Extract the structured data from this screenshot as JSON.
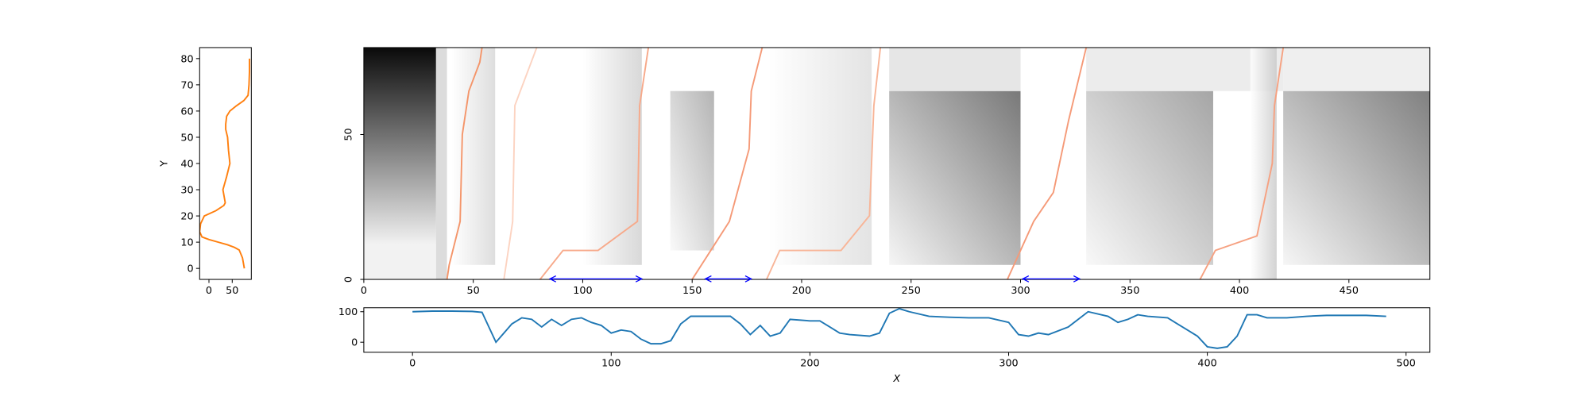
{
  "chart_data": [
    {
      "type": "line",
      "ylabel": "Y",
      "xlim": [
        -20,
        91
      ],
      "ylim": [
        -4.2,
        84.2
      ],
      "xticks": [
        0,
        50
      ],
      "yticks": [
        0,
        10,
        20,
        30,
        40,
        50,
        60,
        70,
        80
      ],
      "series": [
        {
          "color": "#ff7f0e",
          "x": [
            76,
            74,
            72,
            65,
            55,
            40,
            20,
            0,
            -15,
            -20,
            -18,
            -10,
            15,
            32,
            35,
            32,
            30,
            38,
            45,
            42,
            40,
            36,
            36,
            38,
            45,
            59,
            75,
            84,
            86,
            87,
            87
          ],
          "values": [
            0,
            2,
            4,
            7,
            8,
            9,
            10,
            11,
            12,
            14,
            17,
            20,
            22,
            24,
            25,
            28,
            30,
            35,
            40,
            45,
            50,
            53,
            55,
            58,
            60,
            62,
            64,
            66,
            70,
            75,
            80
          ]
        }
      ]
    },
    {
      "type": "heatmap",
      "xlim": [
        0,
        487
      ],
      "ylim": [
        0,
        80
      ],
      "xticks": [
        0,
        50,
        100,
        150,
        200,
        250,
        300,
        350,
        400,
        450
      ],
      "yticks": [
        0,
        50
      ],
      "series": [
        {
          "color": "#f4956a",
          "x": [
            38,
            39,
            44,
            45,
            48,
            53,
            54
          ],
          "values": [
            0,
            5,
            20,
            50,
            65,
            75,
            80
          ]
        },
        {
          "color": "#fcd3c1",
          "x": [
            64,
            68,
            69,
            79
          ],
          "values": [
            0,
            20,
            60,
            80
          ]
        },
        {
          "color": "#f7a98a",
          "x": [
            80.5,
            91,
            107,
            125,
            126,
            130
          ],
          "values": [
            0,
            10,
            10,
            20,
            60,
            80
          ]
        },
        {
          "color": "#f59a78",
          "x": [
            150,
            167,
            176,
            177,
            182
          ],
          "values": [
            0,
            20,
            45,
            65,
            80
          ]
        },
        {
          "color": "#f8b598",
          "x": [
            184,
            190,
            218,
            231,
            233,
            236
          ],
          "values": [
            0,
            10,
            10,
            22,
            60,
            80
          ]
        },
        {
          "color": "#f59a78",
          "x": [
            294,
            306,
            315,
            322,
            330
          ],
          "values": [
            0,
            20,
            30,
            55,
            80
          ]
        },
        {
          "color": "#f6a181",
          "x": [
            382,
            389,
            408,
            415,
            416,
            420
          ],
          "values": [
            0,
            10,
            15,
            40,
            60,
            80
          ]
        }
      ],
      "spans_color": "#0000ff",
      "spans": [
        [
          85,
          127
        ],
        [
          156,
          177
        ],
        [
          301,
          327
        ]
      ]
    },
    {
      "type": "line",
      "xlabel": "X",
      "xlim": [
        -24.5,
        512
      ],
      "ylim": [
        -33,
        113
      ],
      "xticks": [
        0,
        100,
        200,
        300,
        400,
        500
      ],
      "yticks": [
        0,
        100
      ],
      "series": [
        {
          "color": "#1f77b4",
          "x": [
            0,
            10,
            20,
            30,
            35,
            42,
            50,
            55,
            60,
            65,
            70,
            75,
            80,
            85,
            90,
            95,
            100,
            105,
            110,
            115,
            120,
            125,
            130,
            135,
            140,
            150,
            160,
            165,
            170,
            175,
            180,
            185,
            190,
            200,
            205,
            210,
            215,
            220,
            230,
            235,
            240,
            245,
            250,
            260,
            270,
            280,
            290,
            300,
            305,
            310,
            315,
            320,
            330,
            340,
            350,
            355,
            360,
            365,
            370,
            380,
            385,
            390,
            395,
            400,
            405,
            410,
            415,
            420,
            425,
            430,
            440,
            450,
            460,
            470,
            480,
            490
          ],
          "values": [
            100,
            102,
            102,
            101,
            98,
            0,
            60,
            80,
            75,
            50,
            75,
            55,
            75,
            80,
            65,
            55,
            30,
            40,
            35,
            10,
            -5,
            -5,
            5,
            60,
            85,
            85,
            85,
            60,
            25,
            55,
            20,
            30,
            75,
            70,
            70,
            50,
            30,
            25,
            20,
            30,
            95,
            110,
            100,
            85,
            82,
            80,
            80,
            65,
            25,
            20,
            30,
            25,
            50,
            100,
            85,
            65,
            75,
            90,
            85,
            80,
            60,
            40,
            20,
            -15,
            -20,
            -15,
            20,
            90,
            90,
            80,
            80,
            85,
            88,
            88,
            88,
            85
          ]
        }
      ]
    }
  ]
}
